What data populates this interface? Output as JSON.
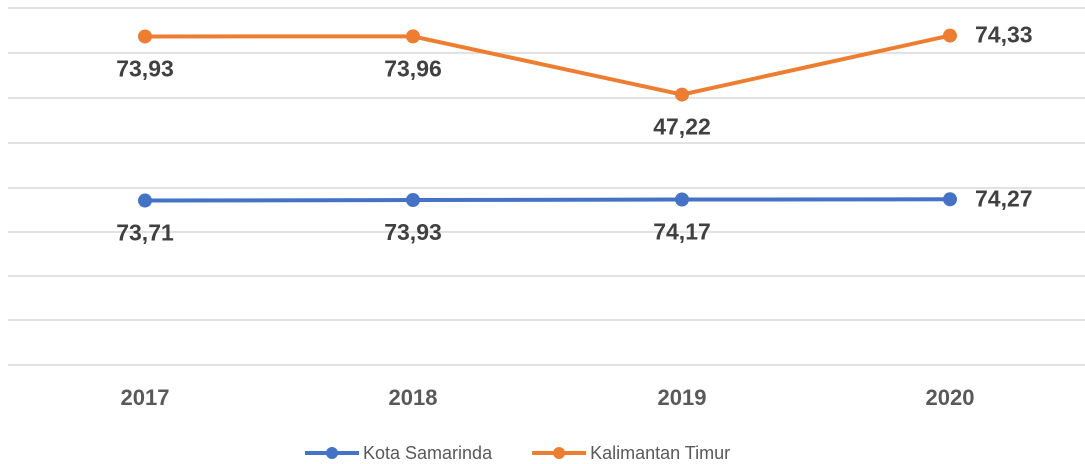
{
  "chart_data": {
    "type": "line",
    "categories": [
      "2017",
      "2018",
      "2019",
      "2020"
    ],
    "series": [
      {
        "name": "Kota Samarinda",
        "color": "#4472c4",
        "axis": "y2",
        "values": [
          73.71,
          73.93,
          74.17,
          74.27
        ],
        "value_labels": [
          "73,71",
          "73,93",
          "74,17",
          "74,27"
        ]
      },
      {
        "name": "Kalimantan Timur",
        "color": "#ed7d31",
        "values": [
          73.93,
          73.96,
          47.22,
          74.33
        ],
        "value_labels": [
          "73,93",
          "73,96",
          "47,22",
          "74,33"
        ]
      }
    ],
    "ylim": [
      -77,
      87
    ],
    "y2lim": [
      0,
      160
    ],
    "legend": "bottom"
  }
}
